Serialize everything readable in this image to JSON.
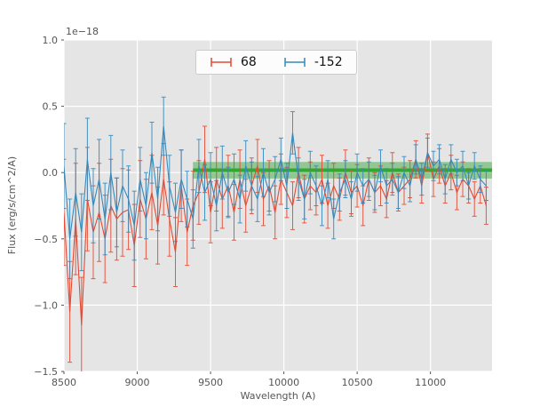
{
  "chart_data": {
    "type": "line",
    "title": "",
    "xlabel": "Wavelength (A)",
    "ylabel": "Flux (erg/s/cm^2/A)",
    "offset_text": "1e−18",
    "xlim": [
      8500,
      11420
    ],
    "ylim": [
      -1.5,
      1.0
    ],
    "xticks": [
      8500,
      9000,
      9500,
      10000,
      10500,
      11000
    ],
    "yticks": [
      -1.5,
      -1.0,
      -0.5,
      0.0,
      0.5,
      1.0
    ],
    "ytick_labels": [
      "−1.5",
      "−1.0",
      "−0.5",
      "0.0",
      "0.5",
      "1.0"
    ],
    "grid": true,
    "legend_position": "upper center",
    "style": {
      "plot_bg": "#e5e5e5",
      "grid_color": "#ffffff",
      "tick_color": "#555555",
      "label_color": "#555555"
    },
    "legend": {
      "entries": [
        {
          "label": "68",
          "color": "#e24a33"
        },
        {
          "label": "-152",
          "color": "#348abd"
        }
      ]
    },
    "band": {
      "x0": 9380,
      "x1": 11420,
      "y0": -0.045,
      "y1": 0.08,
      "color": "#2ca02c",
      "opacity": 0.45,
      "center_line": {
        "y": 0.018,
        "color": "#1fa51f",
        "width": 4
      }
    },
    "series": [
      {
        "name": "68",
        "color": "#e24a33",
        "points": [
          [
            8500,
            -0.3,
            0.4
          ],
          [
            8540,
            -1.05,
            0.38
          ],
          [
            8580,
            -0.35,
            0.42
          ],
          [
            8620,
            -1.15,
            0.36
          ],
          [
            8660,
            -0.2,
            0.39
          ],
          [
            8700,
            -0.45,
            0.35
          ],
          [
            8740,
            -0.3,
            0.37
          ],
          [
            8780,
            -0.5,
            0.33
          ],
          [
            8820,
            -0.25,
            0.35
          ],
          [
            8860,
            -0.35,
            0.31
          ],
          [
            8900,
            -0.3,
            0.33
          ],
          [
            8940,
            -0.28,
            0.3
          ],
          [
            8980,
            -0.55,
            0.31
          ],
          [
            9020,
            -0.2,
            0.29
          ],
          [
            9060,
            -0.35,
            0.3
          ],
          [
            9100,
            -0.15,
            0.28
          ],
          [
            9140,
            -0.4,
            0.29
          ],
          [
            9180,
            -0.05,
            0.27
          ],
          [
            9220,
            -0.35,
            0.28
          ],
          [
            9260,
            -0.6,
            0.26
          ],
          [
            9300,
            -0.1,
            0.27
          ],
          [
            9340,
            -0.45,
            0.25
          ],
          [
            9380,
            -0.25,
            0.26
          ],
          [
            9420,
            -0.15,
            0.24
          ],
          [
            9460,
            0.1,
            0.25
          ],
          [
            9500,
            -0.3,
            0.23
          ],
          [
            9540,
            -0.05,
            0.24
          ],
          [
            9580,
            -0.2,
            0.22
          ],
          [
            9620,
            -0.1,
            0.23
          ],
          [
            9660,
            -0.3,
            0.21
          ],
          [
            9700,
            -0.05,
            0.22
          ],
          [
            9740,
            -0.25,
            0.2
          ],
          [
            9780,
            -0.1,
            0.21
          ],
          [
            9820,
            0.05,
            0.2
          ],
          [
            9860,
            -0.2,
            0.2
          ],
          [
            9900,
            -0.1,
            0.19
          ],
          [
            9940,
            -0.3,
            0.2
          ],
          [
            9980,
            -0.05,
            0.19
          ],
          [
            10020,
            -0.15,
            0.19
          ],
          [
            10060,
            -0.25,
            0.18
          ],
          [
            10100,
            0.0,
            0.19
          ],
          [
            10140,
            -0.2,
            0.18
          ],
          [
            10180,
            -0.1,
            0.18
          ],
          [
            10220,
            -0.15,
            0.17
          ],
          [
            10260,
            -0.05,
            0.18
          ],
          [
            10300,
            -0.25,
            0.17
          ],
          [
            10340,
            -0.1,
            0.17
          ],
          [
            10380,
            -0.2,
            0.16
          ],
          [
            10420,
            0.0,
            0.17
          ],
          [
            10460,
            -0.15,
            0.16
          ],
          [
            10500,
            -0.1,
            0.16
          ],
          [
            10540,
            -0.25,
            0.15
          ],
          [
            10580,
            -0.05,
            0.16
          ],
          [
            10620,
            -0.15,
            0.15
          ],
          [
            10660,
            -0.1,
            0.15
          ],
          [
            10700,
            -0.2,
            0.14
          ],
          [
            10740,
            0.0,
            0.15
          ],
          [
            10780,
            -0.15,
            0.14
          ],
          [
            10820,
            -0.1,
            0.14
          ],
          [
            10860,
            -0.05,
            0.14
          ],
          [
            10900,
            0.1,
            0.14
          ],
          [
            10940,
            -0.1,
            0.13
          ],
          [
            10980,
            0.15,
            0.14
          ],
          [
            11020,
            -0.05,
            0.13
          ],
          [
            11060,
            0.05,
            0.13
          ],
          [
            11100,
            -0.1,
            0.13
          ],
          [
            11140,
            0.0,
            0.13
          ],
          [
            11180,
            -0.15,
            0.13
          ],
          [
            11220,
            -0.05,
            0.13
          ],
          [
            11260,
            -0.1,
            0.13
          ],
          [
            11300,
            -0.2,
            0.13
          ],
          [
            11340,
            -0.1,
            0.13
          ],
          [
            11380,
            -0.25,
            0.14
          ]
        ]
      },
      {
        "name": "-152",
        "color": "#348abd",
        "points": [
          [
            8500,
            0.05,
            0.32
          ],
          [
            8540,
            -0.5,
            0.3
          ],
          [
            8580,
            -0.15,
            0.33
          ],
          [
            8620,
            -0.45,
            0.29
          ],
          [
            8660,
            0.1,
            0.31
          ],
          [
            8700,
            -0.25,
            0.28
          ],
          [
            8740,
            -0.05,
            0.3
          ],
          [
            8780,
            -0.35,
            0.27
          ],
          [
            8820,
            0.0,
            0.28
          ],
          [
            8860,
            -0.3,
            0.26
          ],
          [
            8900,
            -0.1,
            0.27
          ],
          [
            8940,
            -0.2,
            0.25
          ],
          [
            8980,
            -0.4,
            0.26
          ],
          [
            9020,
            -0.05,
            0.24
          ],
          [
            9060,
            -0.25,
            0.25
          ],
          [
            9100,
            0.15,
            0.23
          ],
          [
            9140,
            -0.2,
            0.24
          ],
          [
            9180,
            0.35,
            0.22
          ],
          [
            9220,
            -0.1,
            0.23
          ],
          [
            9260,
            -0.3,
            0.22
          ],
          [
            9300,
            -0.05,
            0.22
          ],
          [
            9340,
            -0.2,
            0.21
          ],
          [
            9380,
            -0.35,
            0.22
          ],
          [
            9420,
            0.05,
            0.2
          ],
          [
            9460,
            -0.15,
            0.21
          ],
          [
            9500,
            -0.05,
            0.2
          ],
          [
            9540,
            -0.25,
            0.19
          ],
          [
            9580,
            0.0,
            0.2
          ],
          [
            9620,
            -0.15,
            0.19
          ],
          [
            9660,
            -0.05,
            0.19
          ],
          [
            9700,
            -0.2,
            0.18
          ],
          [
            9740,
            0.05,
            0.19
          ],
          [
            9780,
            -0.1,
            0.18
          ],
          [
            9820,
            -0.2,
            0.17
          ],
          [
            9860,
            0.0,
            0.18
          ],
          [
            9900,
            -0.15,
            0.17
          ],
          [
            9940,
            -0.05,
            0.17
          ],
          [
            9980,
            0.1,
            0.16
          ],
          [
            10020,
            -0.1,
            0.17
          ],
          [
            10060,
            0.3,
            0.16
          ],
          [
            10100,
            -0.05,
            0.16
          ],
          [
            10140,
            -0.2,
            0.15
          ],
          [
            10180,
            0.0,
            0.16
          ],
          [
            10220,
            -0.1,
            0.15
          ],
          [
            10260,
            -0.25,
            0.15
          ],
          [
            10300,
            -0.05,
            0.14
          ],
          [
            10340,
            -0.35,
            0.15
          ],
          [
            10380,
            -0.15,
            0.14
          ],
          [
            10420,
            -0.05,
            0.14
          ],
          [
            10460,
            -0.2,
            0.13
          ],
          [
            10500,
            0.0,
            0.14
          ],
          [
            10540,
            -0.1,
            0.13
          ],
          [
            10580,
            -0.05,
            0.13
          ],
          [
            10620,
            -0.15,
            0.13
          ],
          [
            10660,
            0.05,
            0.12
          ],
          [
            10700,
            -0.1,
            0.13
          ],
          [
            10740,
            -0.05,
            0.12
          ],
          [
            10780,
            -0.15,
            0.12
          ],
          [
            10820,
            0.0,
            0.12
          ],
          [
            10860,
            -0.1,
            0.12
          ],
          [
            10900,
            0.1,
            0.11
          ],
          [
            10940,
            -0.05,
            0.12
          ],
          [
            10980,
            0.15,
            0.11
          ],
          [
            11020,
            0.05,
            0.11
          ],
          [
            11060,
            0.1,
            0.11
          ],
          [
            11100,
            -0.05,
            0.11
          ],
          [
            11140,
            0.1,
            0.11
          ],
          [
            11180,
            0.0,
            0.1
          ],
          [
            11220,
            0.05,
            0.11
          ],
          [
            11260,
            -0.1,
            0.1
          ],
          [
            11300,
            0.05,
            0.1
          ],
          [
            11340,
            -0.05,
            0.1
          ],
          [
            11380,
            -0.1,
            0.11
          ]
        ]
      }
    ]
  }
}
